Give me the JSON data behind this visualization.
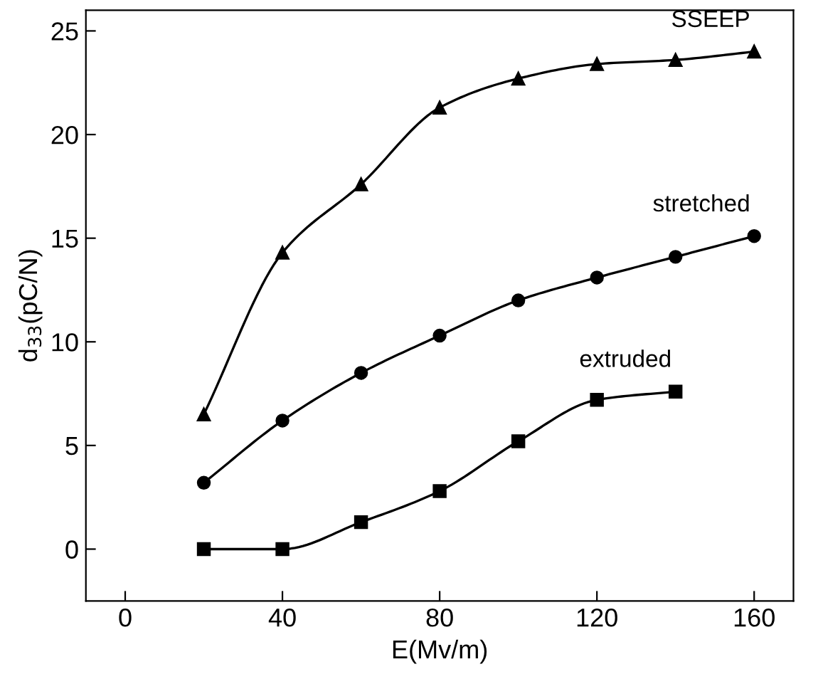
{
  "chart_data": {
    "type": "line",
    "xlabel": "E(Mv/m)",
    "ylabel": "d$_{33}$(pC/N)",
    "xlim": [
      -10,
      170
    ],
    "ylim": [
      -2.5,
      26
    ],
    "xticks": [
      0,
      40,
      80,
      120,
      160
    ],
    "yticks": [
      0,
      5,
      10,
      15,
      20,
      25
    ],
    "grid": false,
    "legend": false,
    "line_style": "solid",
    "series": [
      {
        "name": "SSEEP",
        "color": "#000000",
        "marker": "triangle",
        "x": [
          20,
          40,
          60,
          80,
          100,
          120,
          140,
          160
        ],
        "values": [
          6.5,
          14.3,
          17.6,
          21.3,
          22.7,
          23.4,
          23.6,
          24.0
        ]
      },
      {
        "name": "stretched",
        "color": "#000000",
        "marker": "circle",
        "x": [
          20,
          40,
          60,
          80,
          100,
          120,
          140,
          160
        ],
        "values": [
          3.2,
          6.2,
          8.5,
          10.3,
          12.0,
          13.1,
          14.1,
          15.1
        ]
      },
      {
        "name": "extruded",
        "color": "#000000",
        "marker": "square",
        "x": [
          20,
          40,
          60,
          80,
          100,
          120,
          140
        ],
        "values": [
          0.0,
          0.0,
          1.3,
          2.8,
          5.2,
          7.2,
          7.6
        ]
      }
    ]
  }
}
